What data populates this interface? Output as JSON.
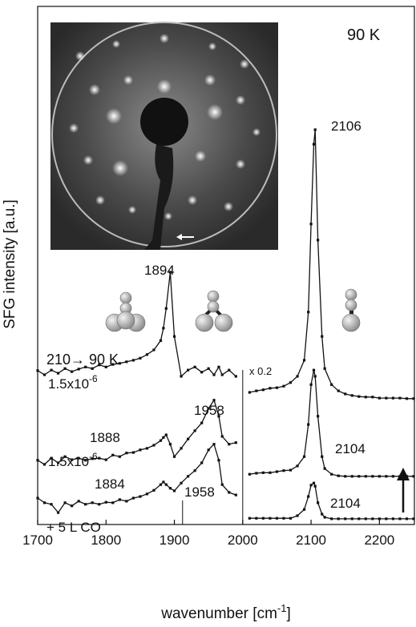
{
  "chart_data": {
    "type": "line",
    "x_label": [
      "wavenumber [cm",
      "-1",
      "]"
    ],
    "y_label": "SFG intensity [a.u.]",
    "xlim": [
      1700,
      2250
    ],
    "xticks": [
      1700,
      1800,
      1900,
      2000,
      2100,
      2200
    ],
    "ylim": [
      0,
      100
    ],
    "vlines": [
      2000,
      1912
    ],
    "color": "#111111",
    "x": [
      1700,
      1710,
      1720,
      1730,
      1740,
      1750,
      1760,
      1770,
      1780,
      1790,
      1800,
      1810,
      1820,
      1830,
      1840,
      1850,
      1860,
      1870,
      1880,
      1884,
      1888,
      1894,
      1900,
      1910,
      1920,
      1930,
      1940,
      1950,
      1958,
      1965,
      1970,
      1980,
      1990,
      2000,
      2010,
      2020,
      2030,
      2040,
      2050,
      2060,
      2070,
      2080,
      2090,
      2096,
      2100,
      2104,
      2106,
      2110,
      2116,
      2120,
      2130,
      2140,
      2150,
      2160,
      2170,
      2180,
      2190,
      2200,
      2210,
      2220,
      2230,
      2240,
      2250
    ],
    "series": [
      {
        "values": [
          29.7,
          28.9,
          29.8,
          29.2,
          30.1,
          29.5,
          30.0,
          30.4,
          30.1,
          30.8,
          30.4,
          30.9,
          31.1,
          31.4,
          31.7,
          32.1,
          32.8,
          33.7,
          35.5,
          37.9,
          41.7,
          48.7,
          36.3,
          28.6,
          29.8,
          30.4,
          29.4,
          30.1,
          28.9,
          30.4,
          28.9,
          29.8,
          28.6,
          null,
          25.5,
          25.8,
          26.0,
          26.3,
          26.4,
          26.7,
          27.4,
          28.6,
          31.7,
          41.0,
          58.0,
          73.4,
          76.2,
          54.9,
          36.3,
          30.1,
          27.0,
          25.8,
          25.2,
          24.9,
          24.7,
          24.6,
          24.6,
          24.4,
          24.4,
          24.4,
          24.4,
          24.3,
          24.3
        ]
      },
      {
        "values": [
          12.4,
          11.6,
          12.8,
          11.9,
          13.1,
          12.5,
          12.8,
          12.4,
          12.7,
          12.8,
          12.5,
          13.4,
          13.1,
          13.8,
          13.9,
          14.4,
          14.7,
          15.3,
          16.2,
          16.8,
          17.3,
          15.5,
          13.1,
          14.7,
          16.5,
          18.1,
          19.6,
          22.4,
          24.0,
          20.9,
          17.0,
          15.5,
          15.8,
          null,
          9.7,
          9.9,
          10.0,
          10.0,
          10.2,
          10.4,
          10.5,
          11.3,
          13.1,
          19.3,
          27.0,
          29.8,
          28.6,
          20.9,
          13.1,
          10.8,
          9.7,
          9.4,
          9.3,
          9.3,
          9.3,
          9.3,
          9.3,
          9.3,
          9.3,
          9.3,
          9.3,
          9.3,
          9.3
        ]
      },
      {
        "values": [
          5.1,
          4.2,
          3.9,
          2.3,
          4.2,
          3.6,
          4.5,
          3.9,
          4.2,
          3.9,
          4.3,
          4.2,
          4.8,
          4.5,
          5.1,
          5.4,
          5.9,
          6.6,
          7.7,
          8.2,
          7.7,
          7.0,
          6.5,
          8.0,
          9.3,
          10.4,
          11.9,
          14.4,
          15.5,
          12.4,
          7.7,
          6.2,
          5.7,
          null,
          1.2,
          1.2,
          1.2,
          1.2,
          1.2,
          1.2,
          1.2,
          1.7,
          2.9,
          5.4,
          7.6,
          8.0,
          7.4,
          4.2,
          2.0,
          1.4,
          1.1,
          1.1,
          1.1,
          1.1,
          1.1,
          1.1,
          1.1,
          1.1,
          1.1,
          1.1,
          1.1,
          1.1,
          1.1
        ]
      }
    ],
    "annotations": [
      {
        "text": "90 K"
      },
      {
        "text": "2106"
      },
      {
        "text": "1894"
      },
      {
        "text": "210→ 90 K"
      },
      {
        "text": "1.5x10",
        "sup": "-6"
      },
      {
        "text": "x 0.2"
      },
      {
        "text": "1888"
      },
      {
        "text": "1958"
      },
      {
        "text": "2104"
      },
      {
        "text": "1.5x10",
        "sup": "-6"
      },
      {
        "text": "1884"
      },
      {
        "text": "1958"
      },
      {
        "text": "2104"
      },
      {
        "text": "+ 5 L CO"
      }
    ]
  }
}
